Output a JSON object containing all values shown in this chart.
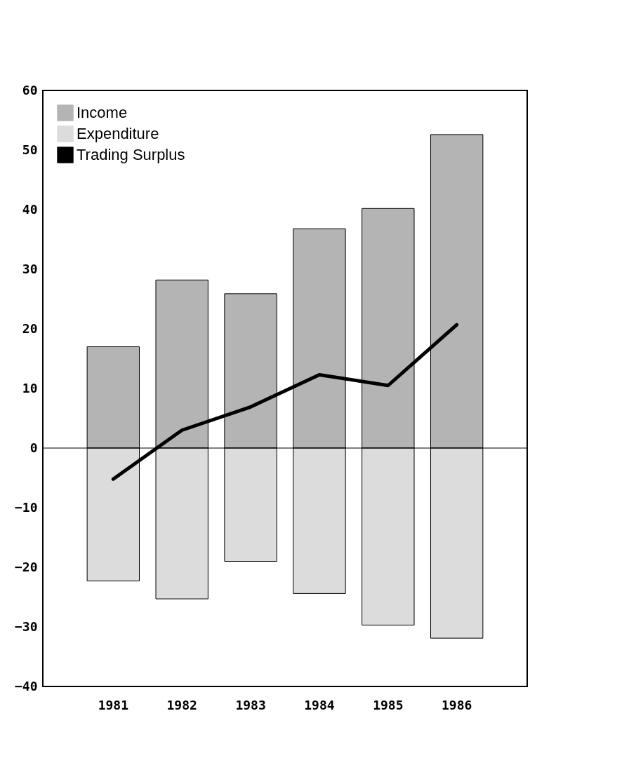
{
  "chart_data": {
    "type": "bar",
    "stacked": true,
    "categories": [
      "1981",
      "1982",
      "1983",
      "1984",
      "1985",
      "1986"
    ],
    "series": [
      {
        "name": "Income",
        "color": "#b4b4b4",
        "values": [
          17.0,
          28.2,
          25.9,
          36.8,
          40.2,
          52.6
        ]
      },
      {
        "name": "Expenditure",
        "color": "#dcdcdc",
        "values": [
          -22.3,
          -25.3,
          -19.0,
          -24.4,
          -29.7,
          -31.9
        ]
      },
      {
        "name": "Trading Surplus",
        "type": "line",
        "color": "#000000",
        "values": [
          -5.2,
          3.0,
          6.9,
          12.3,
          10.5,
          20.7
        ]
      }
    ],
    "ylim": [
      -40,
      60
    ],
    "yticks": [
      -40,
      -30,
      -20,
      -10,
      0,
      10,
      20,
      30,
      40,
      50,
      60
    ],
    "ref_lines": [
      {
        "axis": "y",
        "value": 0
      }
    ],
    "grid": false,
    "legend": "top left"
  }
}
